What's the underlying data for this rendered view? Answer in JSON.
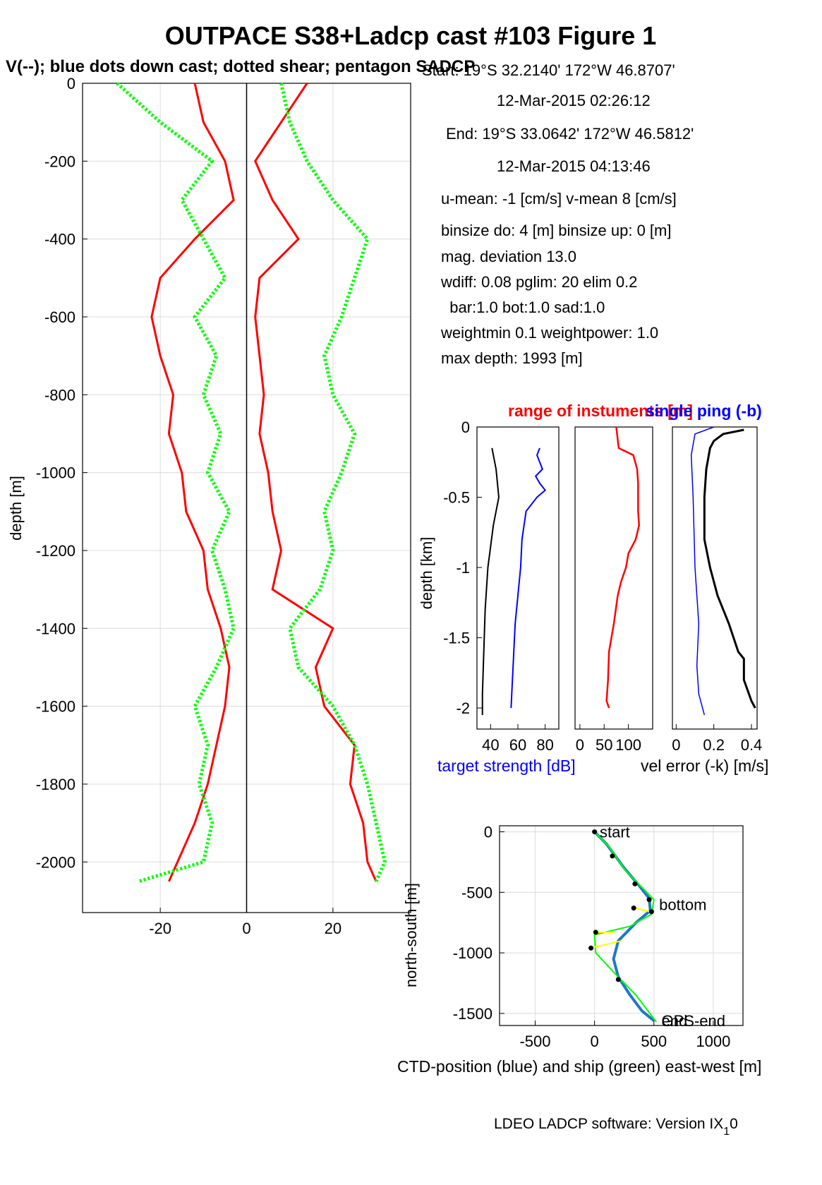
{
  "title": "OUTPACE S38+Ladcp cast #103  Figure 1",
  "subtitle": "V(--); blue dots down cast; dotted shear; pentagon SADCP",
  "info": {
    "start": "Start:  19°S 32.2140'     172°W 46.8707'",
    "start_time": "12-Mar-2015 02:26:12",
    "end": "End:   19°S 33.0642'     172°W 46.5812'",
    "end_time": "12-Mar-2015 04:13:46",
    "means": "u-mean:  -1 [cm/s]    v-mean   8 [cm/s]",
    "binsize": "binsize do: 4 [m]  binsize up:  0 [m]",
    "magdev": "mag. deviation 13.0",
    "wdiff": "wdiff: 0.08  pglim: 20  elim 0.2",
    "weights": "  bar:1.0 bot:1.0 sad:1.0",
    "weightmin": "weightmin 0.1  weightpower: 1.0",
    "maxdepth": "max depth: 1993 [m]"
  },
  "footer": "LDEO LADCP software: Version IX",
  "footer_sub": "1",
  "footer_tail": "0",
  "colors": {
    "red": "#ff0000",
    "green": "#00ff00",
    "blue": "#0000ff",
    "black": "#000000",
    "yellow": "#ffff00",
    "ctd": "#1f78c8",
    "grid": "#dcdcdc"
  },
  "chart_data": [
    {
      "type": "line",
      "panel": "velocity-profile",
      "ylabel": "depth [m]",
      "xlim": [
        -38,
        38
      ],
      "ylim": [
        -2130,
        0
      ],
      "xticks": [
        -20,
        0,
        20
      ],
      "yticks": [
        0,
        -200,
        -400,
        -600,
        -800,
        -1000,
        -1200,
        -1400,
        -1600,
        -1800,
        -2000
      ],
      "grid": true,
      "series": [
        {
          "component": "u",
          "color": "red",
          "style": "solid",
          "depth": [
            0,
            -100,
            -200,
            -300,
            -400,
            -500,
            -600,
            -700,
            -800,
            -900,
            -1000,
            -1100,
            -1200,
            -1300,
            -1400,
            -1500,
            -1600,
            -1700,
            -1800,
            -1900,
            -2000,
            -2050
          ],
          "values": [
            -12,
            -10,
            -5,
            -3,
            -12,
            -20,
            -22,
            -20,
            -17,
            -18,
            -15,
            -14,
            -10,
            -9,
            -6,
            -4,
            -5,
            -7,
            -9,
            -12,
            -16,
            -18
          ]
        },
        {
          "component": "v",
          "color": "red",
          "style": "solid",
          "depth": [
            0,
            -100,
            -200,
            -300,
            -400,
            -500,
            -600,
            -700,
            -800,
            -900,
            -1000,
            -1100,
            -1200,
            -1300,
            -1400,
            -1500,
            -1600,
            -1700,
            -1800,
            -1900,
            -2000,
            -2050
          ],
          "values": [
            14,
            8,
            2,
            6,
            12,
            3,
            2,
            3,
            4,
            3,
            5,
            6,
            8,
            6,
            20,
            16,
            18,
            25,
            24,
            27,
            28,
            30
          ]
        },
        {
          "component": "u shear",
          "color": "green",
          "style": "dotted",
          "depth": [
            0,
            -100,
            -200,
            -300,
            -400,
            -500,
            -600,
            -700,
            -800,
            -900,
            -1000,
            -1100,
            -1200,
            -1300,
            -1400,
            -1500,
            -1600,
            -1700,
            -1800,
            -1900,
            -2000,
            -2050
          ],
          "values": [
            -30,
            -20,
            -8,
            -15,
            -10,
            -5,
            -12,
            -7,
            -10,
            -6,
            -9,
            -4,
            -8,
            -5,
            -3,
            -7,
            -12,
            -9,
            -11,
            -8,
            -10,
            -25
          ]
        },
        {
          "component": "v shear",
          "color": "green",
          "style": "dotted",
          "depth": [
            0,
            -100,
            -200,
            -300,
            -400,
            -500,
            -600,
            -700,
            -800,
            -900,
            -1000,
            -1100,
            -1200,
            -1300,
            -1400,
            -1500,
            -1600,
            -1700,
            -1800,
            -1900,
            -2000,
            -2050
          ],
          "values": [
            8,
            10,
            14,
            20,
            28,
            25,
            22,
            18,
            20,
            25,
            22,
            18,
            20,
            17,
            10,
            12,
            20,
            25,
            28,
            30,
            32,
            30
          ]
        }
      ]
    },
    {
      "type": "line",
      "panel": "target-strength",
      "title": "",
      "xlabel": "target strength [dB]",
      "ylabel": "depth [km]",
      "xlim": [
        30,
        90
      ],
      "ylim": [
        -2.15,
        0
      ],
      "xticks": [
        40,
        60,
        80
      ],
      "yticks": [
        0,
        -0.5,
        -1,
        -1.5,
        -2
      ],
      "series": [
        {
          "color": "blue",
          "depth": [
            -0.15,
            -0.2,
            -0.3,
            -0.35,
            -0.4,
            -0.45,
            -0.5,
            -0.6,
            -0.8,
            -1.0,
            -1.2,
            -1.4,
            -1.6,
            -1.8,
            -2.0
          ],
          "values": [
            76,
            74,
            78,
            73,
            76,
            80,
            74,
            66,
            63,
            62,
            60,
            58,
            57,
            56,
            55
          ]
        },
        {
          "color": "black",
          "depth": [
            -0.15,
            -0.3,
            -0.5,
            -0.7,
            -1.0,
            -1.3,
            -1.6,
            -1.9,
            -2.05
          ],
          "values": [
            41,
            44,
            46,
            42,
            38,
            36,
            35,
            34,
            34
          ]
        }
      ]
    },
    {
      "type": "line",
      "panel": "range",
      "title": "range of instuments [m]",
      "xlim": [
        -10,
        150
      ],
      "ylim": [
        -2.15,
        0
      ],
      "xticks": [
        0,
        50,
        100
      ],
      "series": [
        {
          "color": "red",
          "depth": [
            0,
            -0.15,
            -0.2,
            -0.3,
            -0.4,
            -0.5,
            -0.6,
            -0.7,
            -0.8,
            -0.9,
            -1.0,
            -1.1,
            -1.2,
            -1.4,
            -1.6,
            -1.8,
            -1.95,
            -2.0
          ],
          "values": [
            75,
            80,
            110,
            118,
            120,
            120,
            120,
            122,
            115,
            100,
            95,
            85,
            78,
            70,
            60,
            58,
            55,
            60
          ]
        }
      ]
    },
    {
      "type": "line",
      "panel": "vel-error",
      "title": "single ping (-b)",
      "xlabel": "vel error (-k) [m/s]",
      "xlim": [
        -0.02,
        0.43
      ],
      "ylim": [
        -2.15,
        0
      ],
      "xticks": [
        0,
        0.2,
        0.4
      ],
      "series": [
        {
          "color": "black",
          "depth": [
            -0.02,
            -0.05,
            -0.1,
            -0.15,
            -0.3,
            -0.5,
            -0.8,
            -1.0,
            -1.2,
            -1.4,
            -1.6,
            -1.65,
            -1.8,
            -1.95,
            -2.0
          ],
          "values": [
            0.36,
            0.25,
            0.2,
            0.18,
            0.16,
            0.15,
            0.15,
            0.18,
            0.22,
            0.28,
            0.33,
            0.36,
            0.36,
            0.4,
            0.42
          ]
        },
        {
          "color": "blue",
          "depth": [
            0,
            -0.05,
            -0.2,
            -0.5,
            -1.0,
            -1.4,
            -1.7,
            -1.9,
            -2.05
          ],
          "values": [
            0.2,
            0.1,
            0.08,
            0.09,
            0.1,
            0.12,
            0.11,
            0.12,
            0.15
          ]
        }
      ]
    },
    {
      "type": "line",
      "panel": "position",
      "xlabel": "CTD-position (blue) and ship (green) east-west [m]",
      "ylabel": "north-south [m]",
      "xlim": [
        -800,
        1250
      ],
      "ylim": [
        -1600,
        50
      ],
      "xticks": [
        -500,
        0,
        500,
        1000
      ],
      "yticks": [
        0,
        -500,
        -1000,
        -1500
      ],
      "grid": true,
      "annotations": [
        {
          "text": "start",
          "x": 20,
          "y": 0
        },
        {
          "text": "bottom",
          "x": 520,
          "y": -600
        },
        {
          "text": "end",
          "x": 540,
          "y": -1560
        },
        {
          "text": "GPS-end",
          "x": 540,
          "y": -1560
        }
      ],
      "series": [
        {
          "name": "CTD",
          "color": "ctd",
          "x": [
            0,
            100,
            250,
            380,
            460,
            470,
            350,
            200,
            160,
            200,
            300,
            400,
            500
          ],
          "y": [
            0,
            -100,
            -300,
            -450,
            -550,
            -650,
            -750,
            -900,
            -1050,
            -1200,
            -1350,
            -1480,
            -1560
          ]
        },
        {
          "name": "ship",
          "color": "green",
          "x": [
            0,
            120,
            260,
            400,
            500,
            480,
            300,
            0,
            10,
            200,
            350,
            450,
            520
          ],
          "y": [
            0,
            -120,
            -320,
            -460,
            -560,
            -680,
            -780,
            -850,
            -1000,
            -1200,
            -1350,
            -1480,
            -1570
          ]
        },
        {
          "name": "links",
          "color": "yellow",
          "x": [
            160,
            10,
            230,
            -30,
            470,
            340
          ],
          "y": [
            -830,
            -830,
            -900,
            -960,
            -660,
            -630
          ]
        },
        {
          "name": "markers",
          "color": "black",
          "x": [
            0,
            150,
            340,
            460,
            480,
            330,
            10,
            -30,
            200
          ],
          "y": [
            0,
            -200,
            -430,
            -560,
            -660,
            -630,
            -830,
            -960,
            -1220
          ]
        }
      ]
    }
  ]
}
